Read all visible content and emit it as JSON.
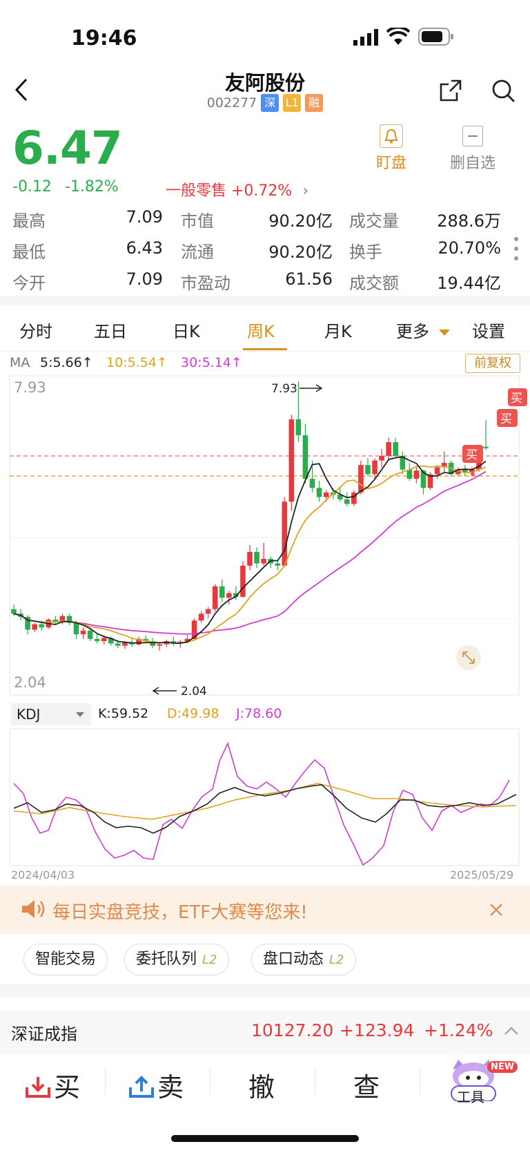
{
  "status": {
    "time": "19:46"
  },
  "header": {
    "title": "友阿股份",
    "code": "002277",
    "tags": [
      "深",
      "L1",
      "融"
    ]
  },
  "quote": {
    "price": "6.47",
    "change": "-0.12",
    "change_pct": "-1.82%",
    "sector": "一般零售 +0.72%",
    "watch_label": "盯盘",
    "remove_label": "删自选"
  },
  "stats": [
    {
      "label": "最高",
      "value": "7.09",
      "color": "#e8383d"
    },
    {
      "label": "最低",
      "value": "6.43",
      "color": "#2bad4e"
    },
    {
      "label": "今开",
      "value": "7.09",
      "color": "#e8383d"
    },
    {
      "label": "市值",
      "value": "90.20亿"
    },
    {
      "label": "流通",
      "value": "90.20亿"
    },
    {
      "label": "市盈动",
      "value": "61.56"
    },
    {
      "label": "成交量",
      "value": "288.6万"
    },
    {
      "label": "换手",
      "value": "20.70%"
    },
    {
      "label": "成交额",
      "value": "19.44亿"
    }
  ],
  "tabs": [
    "分时",
    "五日",
    "日K",
    "周K",
    "月K",
    "更多",
    "设置"
  ],
  "active_tab": "周K",
  "ma": {
    "label": "MA",
    "ma5": "5:5.66↑",
    "ma10": "10:5.54↑",
    "ma30": "30:5.14↑",
    "adjust": "前复权"
  },
  "chart_labels": {
    "high": "7.93",
    "low": "2.04",
    "high_marker": "7.93",
    "low_marker": "2.04",
    "buy": "买"
  },
  "kdj": {
    "selector": "KDJ",
    "k": "K:59.52",
    "d": "D:49.98",
    "j": "J:78.60"
  },
  "dates": {
    "start": "2024/04/03",
    "end": "2025/05/29"
  },
  "banner": {
    "text": "每日实盘竞技，ETF大赛等您来!"
  },
  "pills": [
    {
      "label": "智能交易",
      "badge": ""
    },
    {
      "label": "委托队列",
      "badge": "L2"
    },
    {
      "label": "盘口动态",
      "badge": "L2"
    }
  ],
  "index": {
    "name": "深证成指",
    "value": "10127.20",
    "change": "+123.94",
    "change_pct": "+1.24%"
  },
  "bottom": {
    "buy": "买",
    "sell": "卖",
    "cancel": "撤",
    "query": "查",
    "tools": "工具",
    "new_badge": "NEW"
  },
  "colors": {
    "up": "#e8383d",
    "down": "#2bad4e",
    "accent": "#d9901c",
    "ma5": "#222222",
    "ma10": "#e0a21c",
    "ma30": "#d43ad4"
  },
  "chart_data": {
    "type": "candlestick",
    "ylim": [
      2.04,
      7.93
    ],
    "candles_ohlc": [
      [
        2.95,
        3.05,
        2.8,
        2.85
      ],
      [
        2.85,
        2.95,
        2.7,
        2.78
      ],
      [
        2.78,
        2.82,
        2.4,
        2.5
      ],
      [
        2.5,
        2.65,
        2.45,
        2.62
      ],
      [
        2.62,
        2.7,
        2.48,
        2.55
      ],
      [
        2.55,
        2.75,
        2.52,
        2.72
      ],
      [
        2.72,
        2.8,
        2.6,
        2.68
      ],
      [
        2.68,
        2.85,
        2.62,
        2.8
      ],
      [
        2.8,
        2.85,
        2.6,
        2.65
      ],
      [
        2.65,
        2.7,
        2.3,
        2.4
      ],
      [
        2.4,
        2.55,
        2.3,
        2.48
      ],
      [
        2.48,
        2.52,
        2.25,
        2.3
      ],
      [
        2.3,
        2.4,
        2.2,
        2.25
      ],
      [
        2.25,
        2.38,
        2.18,
        2.32
      ],
      [
        2.32,
        2.35,
        2.15,
        2.2
      ],
      [
        2.2,
        2.28,
        2.1,
        2.15
      ],
      [
        2.15,
        2.25,
        2.08,
        2.22
      ],
      [
        2.22,
        2.3,
        2.12,
        2.18
      ],
      [
        2.18,
        2.35,
        2.15,
        2.3
      ],
      [
        2.3,
        2.38,
        2.2,
        2.25
      ],
      [
        2.25,
        2.32,
        2.1,
        2.15
      ],
      [
        2.15,
        2.22,
        2.04,
        2.18
      ],
      [
        2.18,
        2.28,
        2.12,
        2.25
      ],
      [
        2.25,
        2.35,
        2.15,
        2.2
      ],
      [
        2.2,
        2.28,
        2.1,
        2.24
      ],
      [
        2.24,
        2.38,
        2.2,
        2.3
      ],
      [
        2.3,
        2.75,
        2.28,
        2.7
      ],
      [
        2.7,
        2.9,
        2.65,
        2.85
      ],
      [
        2.85,
        3.0,
        2.75,
        2.95
      ],
      [
        2.95,
        3.5,
        2.9,
        3.45
      ],
      [
        3.45,
        3.6,
        3.1,
        3.2
      ],
      [
        3.2,
        3.35,
        3.05,
        3.3
      ],
      [
        3.3,
        3.45,
        3.15,
        3.22
      ],
      [
        3.22,
        4.0,
        3.2,
        3.9
      ],
      [
        3.9,
        4.35,
        3.8,
        4.2
      ],
      [
        4.2,
        4.3,
        3.85,
        3.95
      ],
      [
        3.95,
        4.4,
        3.9,
        4.05
      ],
      [
        4.05,
        4.1,
        3.85,
        3.95
      ],
      [
        3.95,
        4.0,
        3.8,
        3.9
      ],
      [
        3.9,
        5.4,
        3.88,
        5.3
      ],
      [
        5.3,
        7.2,
        5.1,
        7.1
      ],
      [
        7.1,
        7.93,
        6.6,
        6.75
      ],
      [
        6.75,
        7.0,
        5.7,
        5.8
      ],
      [
        5.8,
        6.2,
        5.5,
        5.6
      ],
      [
        5.6,
        5.75,
        5.3,
        5.4
      ],
      [
        5.4,
        5.55,
        5.3,
        5.5
      ],
      [
        5.5,
        5.6,
        5.35,
        5.45
      ],
      [
        5.45,
        5.6,
        5.3,
        5.35
      ],
      [
        5.35,
        5.5,
        5.2,
        5.25
      ],
      [
        5.25,
        5.55,
        5.2,
        5.5
      ],
      [
        5.5,
        6.2,
        5.45,
        6.1
      ],
      [
        6.1,
        6.25,
        5.85,
        5.9
      ],
      [
        5.9,
        6.25,
        5.8,
        6.2
      ],
      [
        6.2,
        6.45,
        6.05,
        6.3
      ],
      [
        6.3,
        6.7,
        6.2,
        6.6
      ],
      [
        6.6,
        6.7,
        6.25,
        6.3
      ],
      [
        6.3,
        6.4,
        5.9,
        6.0
      ],
      [
        6.0,
        6.15,
        5.75,
        5.8
      ],
      [
        5.8,
        6.05,
        5.7,
        5.98
      ],
      [
        5.98,
        6.0,
        5.45,
        5.6
      ],
      [
        5.6,
        5.95,
        5.55,
        5.9
      ],
      [
        5.9,
        6.1,
        5.8,
        6.05
      ],
      [
        6.05,
        6.4,
        5.95,
        6.15
      ],
      [
        6.15,
        6.2,
        5.85,
        5.9
      ],
      [
        5.9,
        6.05,
        5.85,
        6.0
      ],
      [
        6.0,
        6.1,
        5.85,
        5.95
      ],
      [
        5.95,
        6.05,
        5.85,
        6.0
      ],
      [
        6.0,
        6.55,
        5.95,
        6.5
      ],
      [
        6.5,
        7.09,
        6.43,
        6.47
      ]
    ]
  }
}
